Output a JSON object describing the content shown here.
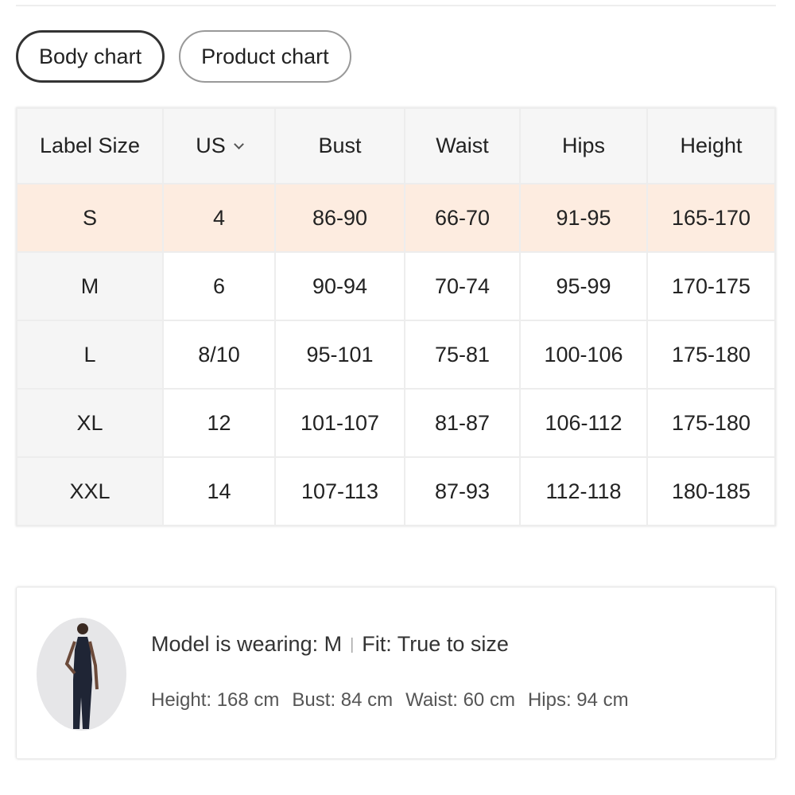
{
  "tabs": [
    {
      "label": "Body chart",
      "active": true
    },
    {
      "label": "Product chart",
      "active": false
    }
  ],
  "table": {
    "headers": [
      "Label Size",
      "US",
      "Bust",
      "Waist",
      "Hips",
      "Height"
    ],
    "rows": [
      [
        "S",
        "4",
        "86-90",
        "66-70",
        "91-95",
        "165-170"
      ],
      [
        "M",
        "6",
        "90-94",
        "70-74",
        "95-99",
        "170-175"
      ],
      [
        "L",
        "8/10",
        "95-101",
        "75-81",
        "100-106",
        "175-180"
      ],
      [
        "XL",
        "12",
        "101-107",
        "81-87",
        "106-112",
        "175-180"
      ],
      [
        "XXL",
        "14",
        "107-113",
        "87-93",
        "112-118",
        "180-185"
      ]
    ],
    "highlight_color": "#fdece0"
  },
  "model": {
    "wearing": "Model is wearing: M",
    "separator": "|",
    "fit": "Fit: True to size",
    "measurements": [
      "Height: 168 cm",
      "Bust: 84 cm",
      "Waist: 60 cm",
      "Hips: 94 cm"
    ]
  }
}
